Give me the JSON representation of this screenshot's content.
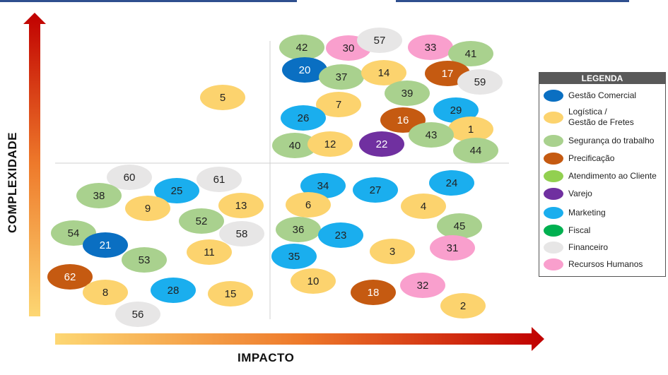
{
  "axes": {
    "x_label": "IMPACTO",
    "y_label": "COMPLEXIDADE"
  },
  "legend": {
    "title": "LEGENDA",
    "items": [
      {
        "label": "Gestão Comercial",
        "color": "#0a6fc2"
      },
      {
        "label": "Logística /\nGestão de Fretes",
        "color": "#fcd36e"
      },
      {
        "label": "Segurança do trabalho",
        "color": "#a9d18e"
      },
      {
        "label": "Precificação",
        "color": "#c55a11"
      },
      {
        "label": "Atendimento ao Cliente",
        "color": "#92d050"
      },
      {
        "label": "Varejo",
        "color": "#7030a0"
      },
      {
        "label": "Marketing",
        "color": "#1aaeee"
      },
      {
        "label": "Fiscal",
        "color": "#00b050"
      },
      {
        "label": "Financeiro",
        "color": "#e7e6e6"
      },
      {
        "label": "Recursos Humanos",
        "color": "#f99fcd"
      }
    ]
  },
  "bubbles": [
    {
      "id": "42",
      "category": "Segurança do trabalho"
    },
    {
      "id": "30",
      "category": "Recursos Humanos"
    },
    {
      "id": "57",
      "category": "Financeiro"
    },
    {
      "id": "33",
      "category": "Recursos Humanos"
    },
    {
      "id": "41",
      "category": "Segurança do trabalho"
    },
    {
      "id": "20",
      "category": "Gestão Comercial"
    },
    {
      "id": "37",
      "category": "Segurança do trabalho"
    },
    {
      "id": "14",
      "category": "Logística / Gestão de Fretes"
    },
    {
      "id": "17",
      "category": "Precificação"
    },
    {
      "id": "59",
      "category": "Financeiro"
    },
    {
      "id": "5",
      "category": "Logística / Gestão de Fretes"
    },
    {
      "id": "39",
      "category": "Segurança do trabalho"
    },
    {
      "id": "7",
      "category": "Logística / Gestão de Fretes"
    },
    {
      "id": "29",
      "category": "Marketing"
    },
    {
      "id": "26",
      "category": "Marketing"
    },
    {
      "id": "16",
      "category": "Precificação"
    },
    {
      "id": "1",
      "category": "Logística / Gestão de Fretes"
    },
    {
      "id": "43",
      "category": "Segurança do trabalho"
    },
    {
      "id": "40",
      "category": "Segurança do trabalho"
    },
    {
      "id": "12",
      "category": "Logística / Gestão de Fretes"
    },
    {
      "id": "22",
      "category": "Varejo"
    },
    {
      "id": "44",
      "category": "Segurança do trabalho"
    },
    {
      "id": "60",
      "category": "Financeiro"
    },
    {
      "id": "61",
      "category": "Financeiro"
    },
    {
      "id": "38",
      "category": "Segurança do trabalho"
    },
    {
      "id": "25",
      "category": "Marketing"
    },
    {
      "id": "9",
      "category": "Logística / Gestão de Fretes"
    },
    {
      "id": "13",
      "category": "Logística / Gestão de Fretes"
    },
    {
      "id": "34",
      "category": "Marketing"
    },
    {
      "id": "27",
      "category": "Marketing"
    },
    {
      "id": "24",
      "category": "Marketing"
    },
    {
      "id": "6",
      "category": "Logística / Gestão de Fretes"
    },
    {
      "id": "4",
      "category": "Logística / Gestão de Fretes"
    },
    {
      "id": "52",
      "category": "Segurança do trabalho"
    },
    {
      "id": "58",
      "category": "Financeiro"
    },
    {
      "id": "54",
      "category": "Segurança do trabalho"
    },
    {
      "id": "21",
      "category": "Gestão Comercial"
    },
    {
      "id": "36",
      "category": "Segurança do trabalho"
    },
    {
      "id": "23",
      "category": "Marketing"
    },
    {
      "id": "45",
      "category": "Segurança do trabalho"
    },
    {
      "id": "11",
      "category": "Logística / Gestão de Fretes"
    },
    {
      "id": "53",
      "category": "Segurança do trabalho"
    },
    {
      "id": "35",
      "category": "Marketing"
    },
    {
      "id": "3",
      "category": "Logística / Gestão de Fretes"
    },
    {
      "id": "31",
      "category": "Recursos Humanos"
    },
    {
      "id": "62",
      "category": "Precificação"
    },
    {
      "id": "10",
      "category": "Logística / Gestão de Fretes"
    },
    {
      "id": "32",
      "category": "Recursos Humanos"
    },
    {
      "id": "8",
      "category": "Logística / Gestão de Fretes"
    },
    {
      "id": "28",
      "category": "Marketing"
    },
    {
      "id": "15",
      "category": "Logística / Gestão de Fretes"
    },
    {
      "id": "18",
      "category": "Precificação"
    },
    {
      "id": "2",
      "category": "Logística / Gestão de Fretes"
    },
    {
      "id": "56",
      "category": "Financeiro"
    }
  ]
}
